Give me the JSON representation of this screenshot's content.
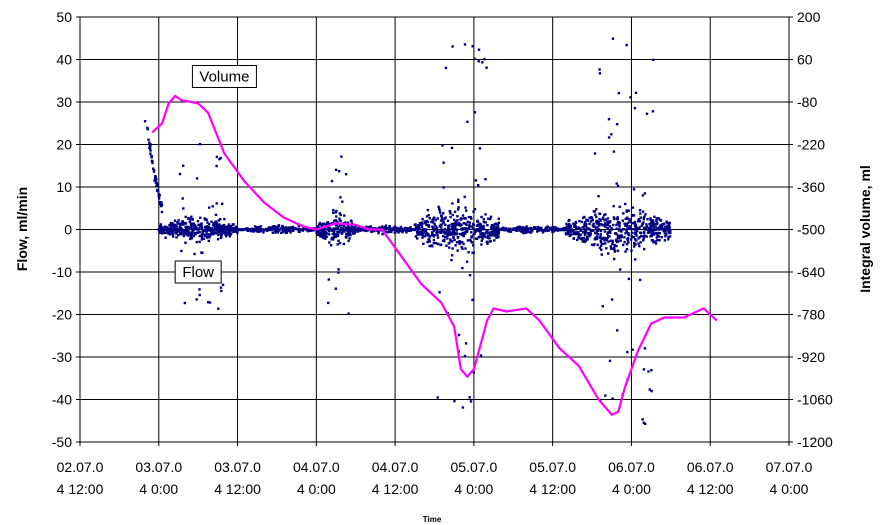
{
  "chart_data": {
    "type": "scatter",
    "xlabel": "Time",
    "ylabel_left": "Flow, ml/min",
    "ylabel_right": "Integral volume, ml",
    "x_ticks": [
      {
        "l1": "02.07.0",
        "l2": "4 12:00"
      },
      {
        "l1": "03.07.0",
        "l2": "4 0:00"
      },
      {
        "l1": "03.07.0",
        "l2": "4 12:00"
      },
      {
        "l1": "04.07.0",
        "l2": "4 0:00"
      },
      {
        "l1": "04.07.0",
        "l2": "4 12:00"
      },
      {
        "l1": "05.07.0",
        "l2": "4 0:00"
      },
      {
        "l1": "05.07.0",
        "l2": "4 12:00"
      },
      {
        "l1": "06.07.0",
        "l2": "4 0:00"
      },
      {
        "l1": "06.07.0",
        "l2": "4 12:00"
      },
      {
        "l1": "07.07.0",
        "l2": "4 0:00"
      }
    ],
    "xlim": [
      "2004-07-02 12:00",
      "2004-07-07 00:00"
    ],
    "ylim_left": [
      -50,
      50
    ],
    "ylim_right": [
      -1200,
      200
    ],
    "y_ticks_left": [
      "50",
      "40",
      "30",
      "20",
      "10",
      "0",
      "-10",
      "-20",
      "-30",
      "-40",
      "-50"
    ],
    "y_ticks_right": [
      "200",
      "60",
      "-80",
      "-220",
      "-360",
      "-500",
      "-640",
      "-780",
      "-920",
      "-1060",
      "-1200"
    ],
    "grid": true,
    "annotations": [
      {
        "text": "Volume",
        "x": "2004-07-03 10:00",
        "y_left": 36
      },
      {
        "text": "Flow",
        "x": "2004-07-03 06:00",
        "y_left": -10
      }
    ],
    "series": [
      {
        "name": "Volume",
        "axis": "right",
        "color": "#ff00ff",
        "kind": "line",
        "points": [
          [
            "2004-07-02 23:00",
            -180
          ],
          [
            "2004-07-03 00:30",
            -150
          ],
          [
            "2004-07-03 01:30",
            -85
          ],
          [
            "2004-07-03 02:30",
            -60
          ],
          [
            "2004-07-03 03:30",
            -75
          ],
          [
            "2004-07-03 05:00",
            -80
          ],
          [
            "2004-07-03 06:00",
            -85
          ],
          [
            "2004-07-03 07:30",
            -115
          ],
          [
            "2004-07-03 10:00",
            -250
          ],
          [
            "2004-07-03 13:00",
            -340
          ],
          [
            "2004-07-03 16:00",
            -410
          ],
          [
            "2004-07-03 19:00",
            -460
          ],
          [
            "2004-07-03 22:00",
            -490
          ],
          [
            "2004-07-04 00:00",
            -500
          ],
          [
            "2004-07-04 03:00",
            -480
          ],
          [
            "2004-07-04 06:00",
            -485
          ],
          [
            "2004-07-04 08:00",
            -500
          ],
          [
            "2004-07-04 10:00",
            -500
          ],
          [
            "2004-07-04 13:00",
            -590
          ],
          [
            "2004-07-04 16:00",
            -680
          ],
          [
            "2004-07-04 19:00",
            -740
          ],
          [
            "2004-07-04 21:00",
            -820
          ],
          [
            "2004-07-04 22:00",
            -960
          ],
          [
            "2004-07-04 23:00",
            -985
          ],
          [
            "2004-07-05 00:00",
            -960
          ],
          [
            "2004-07-05 01:00",
            -880
          ],
          [
            "2004-07-05 02:00",
            -800
          ],
          [
            "2004-07-05 03:00",
            -760
          ],
          [
            "2004-07-05 05:00",
            -770
          ],
          [
            "2004-07-05 08:00",
            -760
          ],
          [
            "2004-07-05 10:00",
            -800
          ],
          [
            "2004-07-05 13:00",
            -890
          ],
          [
            "2004-07-05 16:00",
            -950
          ],
          [
            "2004-07-05 19:00",
            -1060
          ],
          [
            "2004-07-05 21:00",
            -1110
          ],
          [
            "2004-07-05 22:00",
            -1100
          ],
          [
            "2004-07-05 23:00",
            -1020
          ],
          [
            "2004-07-06 01:00",
            -900
          ],
          [
            "2004-07-06 03:00",
            -810
          ],
          [
            "2004-07-06 05:00",
            -790
          ],
          [
            "2004-07-06 08:00",
            -790
          ],
          [
            "2004-07-06 11:00",
            -760
          ],
          [
            "2004-07-06 13:00",
            -800
          ]
        ]
      },
      {
        "name": "Flow",
        "axis": "left",
        "color": "#000080",
        "kind": "scatter",
        "early_segment": [
          [
            "2004-07-02 22:00",
            26
          ],
          [
            "2004-07-02 22:45",
            18
          ],
          [
            "2004-07-02 23:30",
            12
          ],
          [
            "2004-07-03 00:00",
            8
          ],
          [
            "2004-07-03 00:30",
            5
          ]
        ],
        "active_periods": [
          {
            "start": "2004-07-03 00:00",
            "end": "2004-07-03 12:00",
            "spread": 3,
            "max": 21
          },
          {
            "start": "2004-07-03 12:00",
            "end": "2004-07-04 00:00",
            "spread": 1,
            "max": 5
          },
          {
            "start": "2004-07-04 00:00",
            "end": "2004-07-04 06:00",
            "spread": 4,
            "max": 20
          },
          {
            "start": "2004-07-04 06:00",
            "end": "2004-07-04 15:00",
            "spread": 1,
            "max": 3
          },
          {
            "start": "2004-07-04 15:00",
            "end": "2004-07-05 04:00",
            "spread": 6,
            "max": 44
          },
          {
            "start": "2004-07-05 04:00",
            "end": "2004-07-05 14:00",
            "spread": 1,
            "max": 4
          },
          {
            "start": "2004-07-05 14:00",
            "end": "2004-07-06 06:00",
            "spread": 6,
            "max": 46
          }
        ]
      }
    ]
  }
}
